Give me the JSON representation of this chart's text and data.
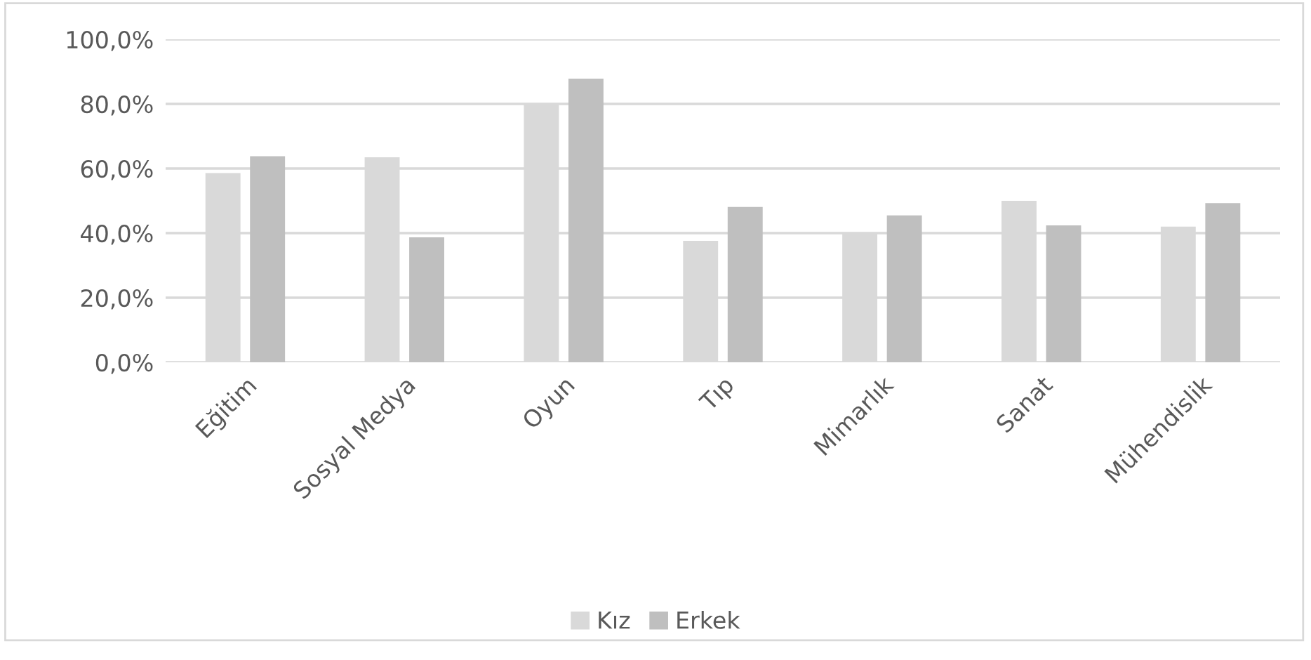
{
  "chart_data": {
    "type": "bar",
    "categories": [
      "Eğitim",
      "Sosyal Medya",
      "Oyun",
      "Tıp",
      "Mimarlık",
      "Sanat",
      "Mühendislik"
    ],
    "series": [
      {
        "name": "Kız",
        "color": "#d9d9d9",
        "values": [
          58.6,
          63.5,
          79.9,
          37.6,
          40.1,
          50.0,
          42.0
        ]
      },
      {
        "name": "Erkek",
        "color": "#bfbfbf",
        "values": [
          63.8,
          38.7,
          87.8,
          48.1,
          45.5,
          42.4,
          49.3
        ]
      }
    ],
    "ylim": [
      0,
      100
    ],
    "yticks": [
      {
        "value": 0,
        "label": "0,0%"
      },
      {
        "value": 20,
        "label": "20,0%"
      },
      {
        "value": 40,
        "label": "40,0%"
      },
      {
        "value": 60,
        "label": "60,0%"
      },
      {
        "value": 80,
        "label": "80,0%"
      },
      {
        "value": 100,
        "label": "100,0%"
      }
    ],
    "grid": "y",
    "legend": "bottom"
  }
}
